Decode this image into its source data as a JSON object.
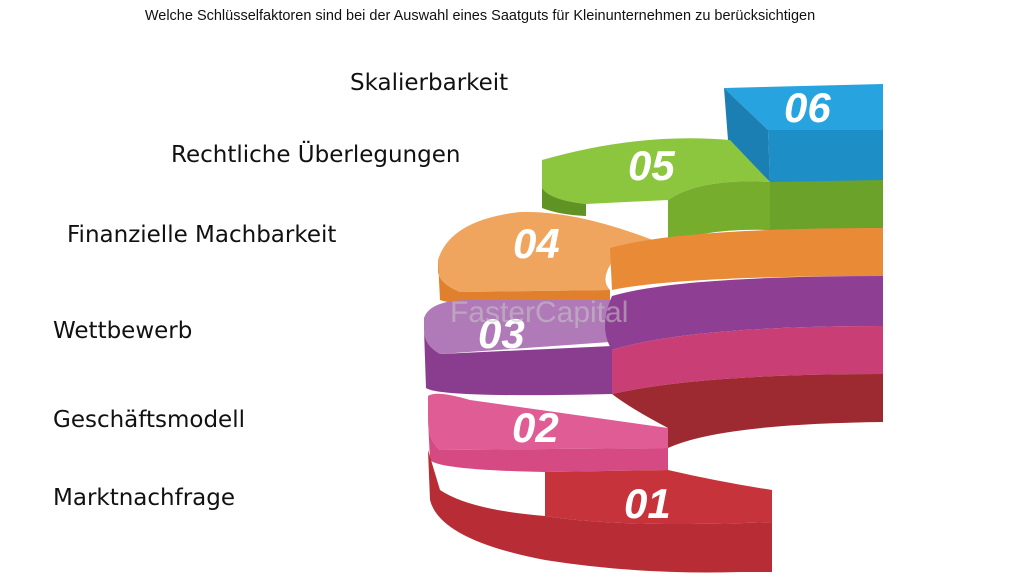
{
  "title": "Welche Schlüsselfaktoren sind bei der Auswahl eines Saatguts für Kleinunternehmen zu berücksichtigen",
  "watermark": "FasterCapital",
  "steps": [
    {
      "number": "01",
      "label": "Marktnachfrage",
      "color": "#c7333a"
    },
    {
      "number": "02",
      "label": "Geschäftsmodell",
      "color": "#dd4f86"
    },
    {
      "number": "03",
      "label": "Wettbewerb",
      "color": "#8e3f93"
    },
    {
      "number": "04",
      "label": "Finanzielle Machbarkeit",
      "color": "#ec8f3c"
    },
    {
      "number": "05",
      "label": "Rechtliche Überlegungen",
      "color": "#7fb52c"
    },
    {
      "number": "06",
      "label": "Skalierbarkeit",
      "color": "#27a3df"
    }
  ]
}
